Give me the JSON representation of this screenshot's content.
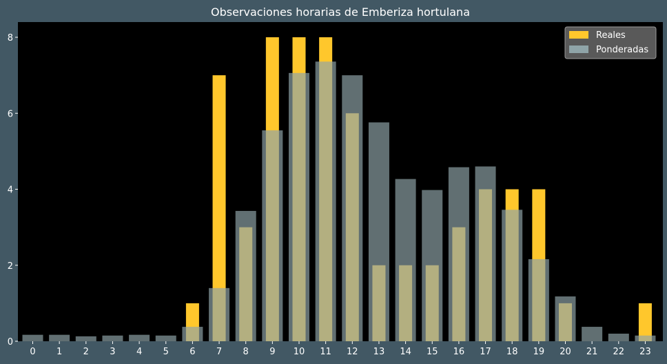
{
  "chart_data": {
    "type": "bar",
    "title": "Observaciones horarias de Emberiza hortulana",
    "xlabel": "",
    "ylabel": "",
    "categories": [
      "0",
      "1",
      "2",
      "3",
      "4",
      "5",
      "6",
      "7",
      "8",
      "9",
      "10",
      "11",
      "12",
      "13",
      "14",
      "15",
      "16",
      "17",
      "18",
      "19",
      "20",
      "21",
      "22",
      "23"
    ],
    "series": [
      {
        "name": "Reales",
        "color": "#FFC72C",
        "values": [
          0,
          0,
          0,
          0,
          0,
          0,
          1,
          7,
          3,
          8,
          8,
          8,
          6,
          2,
          2,
          2,
          3,
          4,
          4,
          4,
          1,
          0,
          0,
          1
        ]
      },
      {
        "name": "Ponderadas",
        "color": "#8FA4A8",
        "values": [
          0.17,
          0.17,
          0.13,
          0.15,
          0.17,
          0.15,
          0.38,
          1.4,
          3.43,
          5.55,
          7.06,
          7.36,
          7.0,
          5.76,
          4.27,
          3.98,
          4.58,
          4.6,
          3.46,
          2.16,
          1.18,
          0.38,
          0.2,
          0.15
        ]
      }
    ],
    "ylim": [
      0,
      8.4
    ],
    "yticks": [
      0,
      2,
      4,
      6,
      8
    ],
    "grid": false,
    "legend_position": "top-right"
  }
}
